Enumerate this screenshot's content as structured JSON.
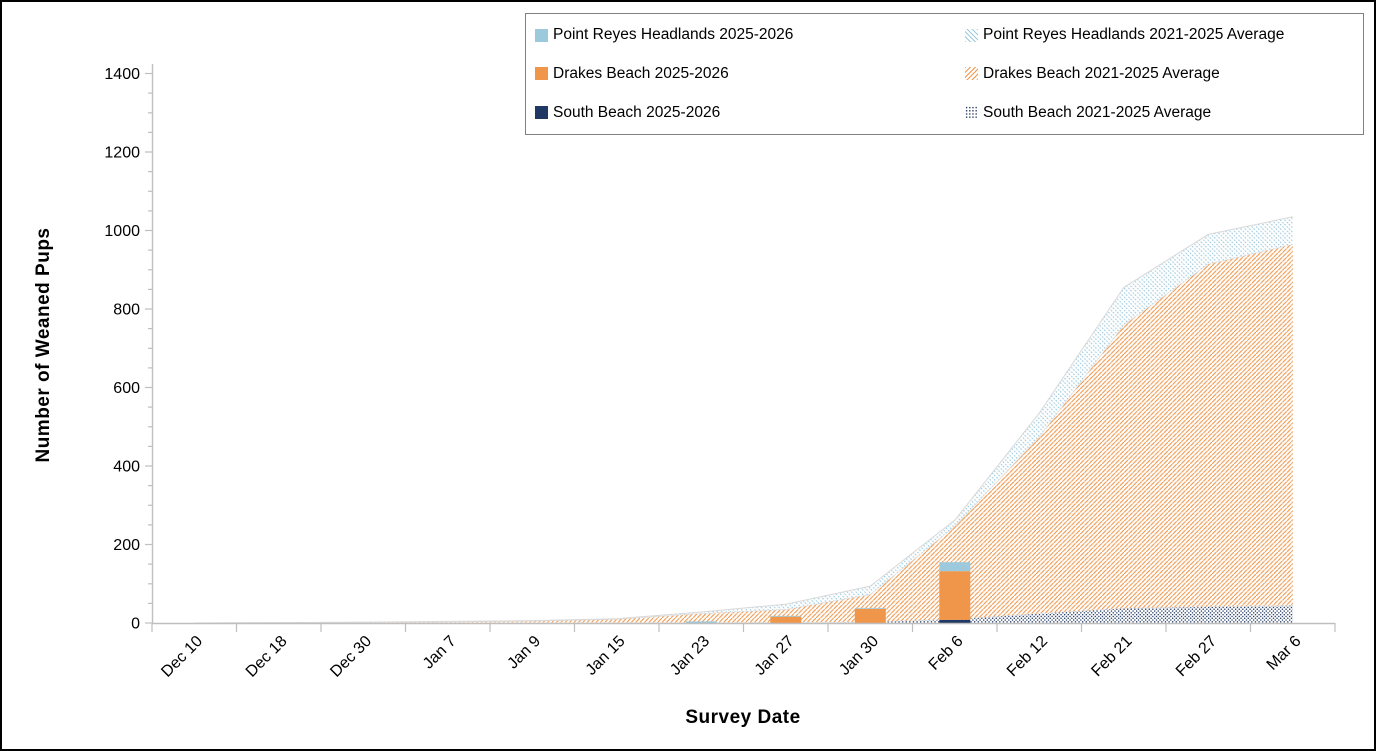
{
  "chart_data": {
    "type": "area",
    "subtype": "stacked areas (2021-2025 averages) with stacked bars (2025-2026 season)",
    "title": "",
    "xlabel": "Survey Date",
    "ylabel": "Number of Weaned Pups",
    "ylim": [
      0,
      1400
    ],
    "y_major_tick": 200,
    "y_minor_tick": 50,
    "grid": "off",
    "legend_position": "top",
    "categories": [
      "Dec 10",
      "Dec 18",
      "Dec 30",
      "Jan 7",
      "Jan 9",
      "Jan 15",
      "Jan 23",
      "Jan 27",
      "Jan 30",
      "Feb 6",
      "Feb 12",
      "Feb 21",
      "Feb 27",
      "Mar 6"
    ],
    "y_tick_labels": [
      "0",
      "200",
      "400",
      "600",
      "800",
      "1000",
      "1200",
      "1400"
    ],
    "series": [
      {
        "name": "South Beach 2021-2025 Average",
        "render": "area",
        "pattern": "dots",
        "color_key": "sb",
        "values": [
          0,
          0,
          0,
          0,
          0,
          1,
          1,
          2,
          3,
          10,
          25,
          38,
          42,
          45
        ]
      },
      {
        "name": "Drakes Beach 2021-2025 Average",
        "render": "area",
        "pattern": "hatch-db",
        "color_key": "db",
        "values": [
          0,
          1,
          2,
          3,
          5,
          9,
          24,
          33,
          70,
          237,
          450,
          722,
          873,
          920
        ]
      },
      {
        "name": "Point Reyes Headlands 2021-2025 Average",
        "render": "area",
        "pattern": "hatch-prh",
        "color_key": "prh",
        "values": [
          0,
          0,
          0,
          1,
          1,
          1,
          3,
          13,
          21,
          15,
          60,
          95,
          75,
          70
        ]
      },
      {
        "name": "South Beach 2025-2026",
        "render": "bar",
        "pattern": "solid",
        "color_key": "sb",
        "values": [
          0,
          0,
          0,
          0,
          0,
          0,
          0,
          0,
          0,
          8,
          0,
          0,
          0,
          0
        ]
      },
      {
        "name": "Drakes Beach 2025-2026",
        "render": "bar",
        "pattern": "solid",
        "color_key": "db",
        "values": [
          0,
          0,
          0,
          0,
          0,
          0,
          0,
          16,
          36,
          124,
          0,
          0,
          0,
          0
        ]
      },
      {
        "name": "Point Reyes Headlands 2025-2026",
        "render": "bar",
        "pattern": "solid",
        "color_key": "prh",
        "values": [
          0,
          0,
          0,
          0,
          0,
          0,
          4,
          2,
          2,
          23,
          0,
          0,
          0,
          0
        ]
      }
    ],
    "colors": {
      "prh": "#9CC9DC",
      "db": "#F0964A",
      "sb": "#1F3864",
      "axis": "#BFBFBF",
      "area_outline": "#D9D9D9",
      "text": "#000000"
    },
    "legend": {
      "entries": [
        {
          "label": "Point Reyes Headlands 2025-2026",
          "swatch": "solid-prh"
        },
        {
          "label": "Point Reyes Headlands 2021-2025 Average",
          "swatch": "hatch-prh"
        },
        {
          "label": "Drakes Beach 2025-2026",
          "swatch": "solid-db"
        },
        {
          "label": "Drakes Beach 2021-2025 Average",
          "swatch": "hatch-db"
        },
        {
          "label": "South Beach 2025-2026",
          "swatch": "solid-sb"
        },
        {
          "label": "South Beach 2021-2025 Average",
          "swatch": "dots-sb"
        }
      ]
    }
  }
}
